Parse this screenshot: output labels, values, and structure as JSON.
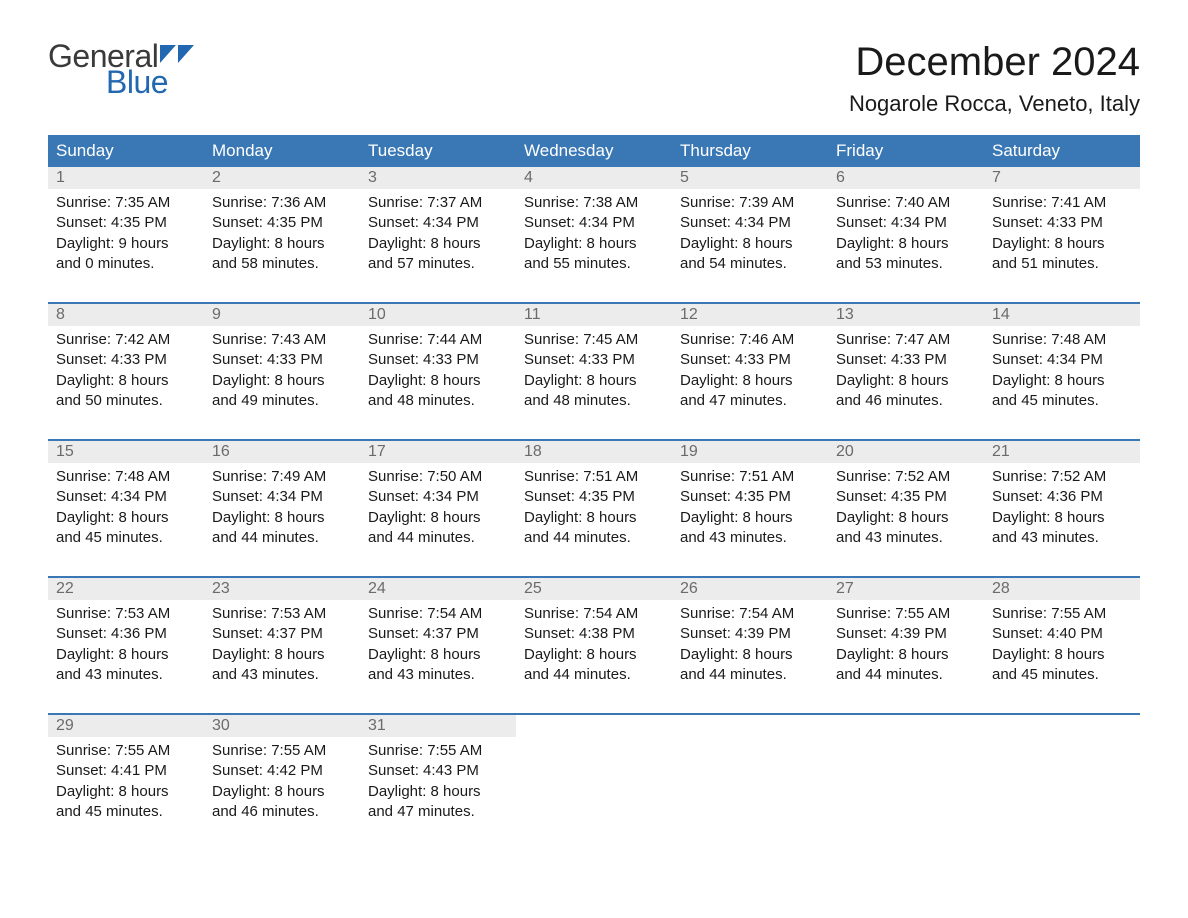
{
  "brand": {
    "word1": "General",
    "word2": "Blue",
    "accent_color": "#2268b1"
  },
  "title": "December 2024",
  "location": "Nogarole Rocca, Veneto, Italy",
  "colors": {
    "header_bg": "#3a78b5",
    "header_text": "#ffffff",
    "daynum_bg": "#ececec",
    "daynum_text": "#6b6b6b",
    "body_text": "#1a1a1a",
    "rule": "#3a78b5",
    "page_bg": "#ffffff"
  },
  "typography": {
    "title_fontsize": 40,
    "location_fontsize": 22,
    "dow_fontsize": 17,
    "daynum_fontsize": 16,
    "detail_fontsize": 15
  },
  "days_of_week": [
    "Sunday",
    "Monday",
    "Tuesday",
    "Wednesday",
    "Thursday",
    "Friday",
    "Saturday"
  ],
  "weeks": [
    [
      {
        "n": "1",
        "sunrise": "Sunrise: 7:35 AM",
        "sunset": "Sunset: 4:35 PM",
        "d1": "Daylight: 9 hours",
        "d2": "and 0 minutes."
      },
      {
        "n": "2",
        "sunrise": "Sunrise: 7:36 AM",
        "sunset": "Sunset: 4:35 PM",
        "d1": "Daylight: 8 hours",
        "d2": "and 58 minutes."
      },
      {
        "n": "3",
        "sunrise": "Sunrise: 7:37 AM",
        "sunset": "Sunset: 4:34 PM",
        "d1": "Daylight: 8 hours",
        "d2": "and 57 minutes."
      },
      {
        "n": "4",
        "sunrise": "Sunrise: 7:38 AM",
        "sunset": "Sunset: 4:34 PM",
        "d1": "Daylight: 8 hours",
        "d2": "and 55 minutes."
      },
      {
        "n": "5",
        "sunrise": "Sunrise: 7:39 AM",
        "sunset": "Sunset: 4:34 PM",
        "d1": "Daylight: 8 hours",
        "d2": "and 54 minutes."
      },
      {
        "n": "6",
        "sunrise": "Sunrise: 7:40 AM",
        "sunset": "Sunset: 4:34 PM",
        "d1": "Daylight: 8 hours",
        "d2": "and 53 minutes."
      },
      {
        "n": "7",
        "sunrise": "Sunrise: 7:41 AM",
        "sunset": "Sunset: 4:33 PM",
        "d1": "Daylight: 8 hours",
        "d2": "and 51 minutes."
      }
    ],
    [
      {
        "n": "8",
        "sunrise": "Sunrise: 7:42 AM",
        "sunset": "Sunset: 4:33 PM",
        "d1": "Daylight: 8 hours",
        "d2": "and 50 minutes."
      },
      {
        "n": "9",
        "sunrise": "Sunrise: 7:43 AM",
        "sunset": "Sunset: 4:33 PM",
        "d1": "Daylight: 8 hours",
        "d2": "and 49 minutes."
      },
      {
        "n": "10",
        "sunrise": "Sunrise: 7:44 AM",
        "sunset": "Sunset: 4:33 PM",
        "d1": "Daylight: 8 hours",
        "d2": "and 48 minutes."
      },
      {
        "n": "11",
        "sunrise": "Sunrise: 7:45 AM",
        "sunset": "Sunset: 4:33 PM",
        "d1": "Daylight: 8 hours",
        "d2": "and 48 minutes."
      },
      {
        "n": "12",
        "sunrise": "Sunrise: 7:46 AM",
        "sunset": "Sunset: 4:33 PM",
        "d1": "Daylight: 8 hours",
        "d2": "and 47 minutes."
      },
      {
        "n": "13",
        "sunrise": "Sunrise: 7:47 AM",
        "sunset": "Sunset: 4:33 PM",
        "d1": "Daylight: 8 hours",
        "d2": "and 46 minutes."
      },
      {
        "n": "14",
        "sunrise": "Sunrise: 7:48 AM",
        "sunset": "Sunset: 4:34 PM",
        "d1": "Daylight: 8 hours",
        "d2": "and 45 minutes."
      }
    ],
    [
      {
        "n": "15",
        "sunrise": "Sunrise: 7:48 AM",
        "sunset": "Sunset: 4:34 PM",
        "d1": "Daylight: 8 hours",
        "d2": "and 45 minutes."
      },
      {
        "n": "16",
        "sunrise": "Sunrise: 7:49 AM",
        "sunset": "Sunset: 4:34 PM",
        "d1": "Daylight: 8 hours",
        "d2": "and 44 minutes."
      },
      {
        "n": "17",
        "sunrise": "Sunrise: 7:50 AM",
        "sunset": "Sunset: 4:34 PM",
        "d1": "Daylight: 8 hours",
        "d2": "and 44 minutes."
      },
      {
        "n": "18",
        "sunrise": "Sunrise: 7:51 AM",
        "sunset": "Sunset: 4:35 PM",
        "d1": "Daylight: 8 hours",
        "d2": "and 44 minutes."
      },
      {
        "n": "19",
        "sunrise": "Sunrise: 7:51 AM",
        "sunset": "Sunset: 4:35 PM",
        "d1": "Daylight: 8 hours",
        "d2": "and 43 minutes."
      },
      {
        "n": "20",
        "sunrise": "Sunrise: 7:52 AM",
        "sunset": "Sunset: 4:35 PM",
        "d1": "Daylight: 8 hours",
        "d2": "and 43 minutes."
      },
      {
        "n": "21",
        "sunrise": "Sunrise: 7:52 AM",
        "sunset": "Sunset: 4:36 PM",
        "d1": "Daylight: 8 hours",
        "d2": "and 43 minutes."
      }
    ],
    [
      {
        "n": "22",
        "sunrise": "Sunrise: 7:53 AM",
        "sunset": "Sunset: 4:36 PM",
        "d1": "Daylight: 8 hours",
        "d2": "and 43 minutes."
      },
      {
        "n": "23",
        "sunrise": "Sunrise: 7:53 AM",
        "sunset": "Sunset: 4:37 PM",
        "d1": "Daylight: 8 hours",
        "d2": "and 43 minutes."
      },
      {
        "n": "24",
        "sunrise": "Sunrise: 7:54 AM",
        "sunset": "Sunset: 4:37 PM",
        "d1": "Daylight: 8 hours",
        "d2": "and 43 minutes."
      },
      {
        "n": "25",
        "sunrise": "Sunrise: 7:54 AM",
        "sunset": "Sunset: 4:38 PM",
        "d1": "Daylight: 8 hours",
        "d2": "and 44 minutes."
      },
      {
        "n": "26",
        "sunrise": "Sunrise: 7:54 AM",
        "sunset": "Sunset: 4:39 PM",
        "d1": "Daylight: 8 hours",
        "d2": "and 44 minutes."
      },
      {
        "n": "27",
        "sunrise": "Sunrise: 7:55 AM",
        "sunset": "Sunset: 4:39 PM",
        "d1": "Daylight: 8 hours",
        "d2": "and 44 minutes."
      },
      {
        "n": "28",
        "sunrise": "Sunrise: 7:55 AM",
        "sunset": "Sunset: 4:40 PM",
        "d1": "Daylight: 8 hours",
        "d2": "and 45 minutes."
      }
    ],
    [
      {
        "n": "29",
        "sunrise": "Sunrise: 7:55 AM",
        "sunset": "Sunset: 4:41 PM",
        "d1": "Daylight: 8 hours",
        "d2": "and 45 minutes."
      },
      {
        "n": "30",
        "sunrise": "Sunrise: 7:55 AM",
        "sunset": "Sunset: 4:42 PM",
        "d1": "Daylight: 8 hours",
        "d2": "and 46 minutes."
      },
      {
        "n": "31",
        "sunrise": "Sunrise: 7:55 AM",
        "sunset": "Sunset: 4:43 PM",
        "d1": "Daylight: 8 hours",
        "d2": "and 47 minutes."
      },
      null,
      null,
      null,
      null
    ]
  ]
}
